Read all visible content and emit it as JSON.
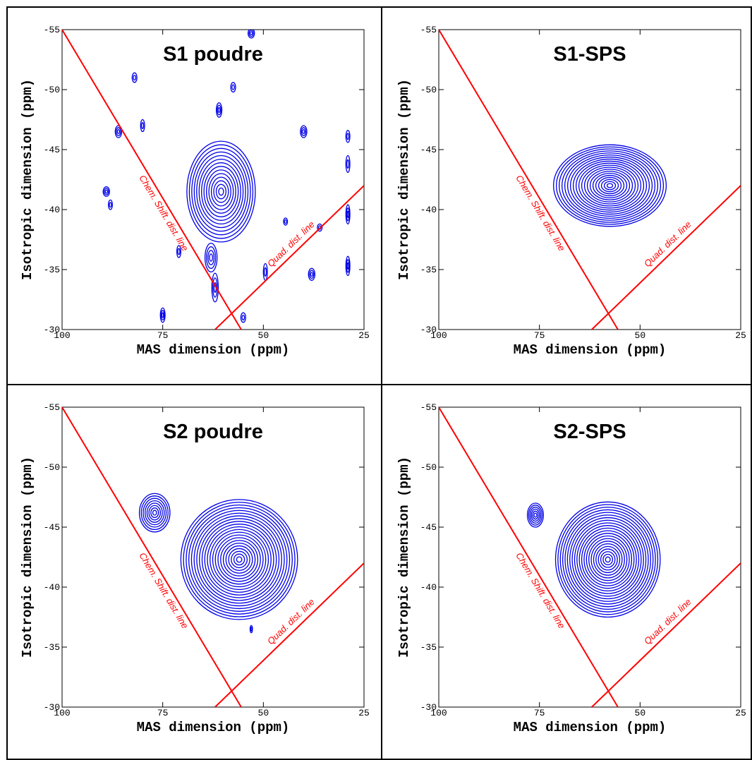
{
  "chart_data": [
    {
      "type": "contour",
      "title": "S1 poudre",
      "x_label": "MAS dimension (ppm)",
      "y_label": "Isotropic dimension (ppm)",
      "xlim": [
        100,
        25
      ],
      "ylim": [
        -30,
        -55
      ],
      "xticks": [
        100,
        75,
        50,
        25
      ],
      "yticks": [
        -30,
        -35,
        -40,
        -45,
        -50,
        -55
      ],
      "color": "#0000e6",
      "peaks": [
        {
          "x": 60.5,
          "y": -41.5,
          "rx": 8.5,
          "ry": 4.2,
          "levels": 14
        },
        {
          "x": 63,
          "y": -36,
          "rx": 1.5,
          "ry": 1.2,
          "levels": 4
        },
        {
          "x": 62,
          "y": -33.5,
          "rx": 0.8,
          "ry": 1.2,
          "levels": 3
        },
        {
          "x": 86,
          "y": -46.5,
          "rx": 0.8,
          "ry": 0.5,
          "levels": 3
        },
        {
          "x": 89,
          "y": -41.5,
          "rx": 0.8,
          "ry": 0.4,
          "levels": 3
        },
        {
          "x": 88,
          "y": -40.4,
          "rx": 0.5,
          "ry": 0.4,
          "levels": 2
        },
        {
          "x": 80,
          "y": -47,
          "rx": 0.5,
          "ry": 0.5,
          "levels": 2
        },
        {
          "x": 82,
          "y": -51,
          "rx": 0.6,
          "ry": 0.4,
          "levels": 2
        },
        {
          "x": 75,
          "y": -31.2,
          "rx": 0.6,
          "ry": 0.6,
          "levels": 3
        },
        {
          "x": 71,
          "y": -36.5,
          "rx": 0.5,
          "ry": 0.5,
          "levels": 2
        },
        {
          "x": 57.5,
          "y": -50.2,
          "rx": 0.6,
          "ry": 0.4,
          "levels": 2
        },
        {
          "x": 61,
          "y": -48.3,
          "rx": 0.7,
          "ry": 0.6,
          "levels": 3
        },
        {
          "x": 53,
          "y": -54.7,
          "rx": 0.8,
          "ry": 0.4,
          "levels": 3
        },
        {
          "x": 40,
          "y": -46.5,
          "rx": 0.8,
          "ry": 0.5,
          "levels": 3
        },
        {
          "x": 36,
          "y": -38.5,
          "rx": 0.6,
          "ry": 0.3,
          "levels": 2
        },
        {
          "x": 38,
          "y": -34.6,
          "rx": 0.8,
          "ry": 0.5,
          "levels": 3
        },
        {
          "x": 29,
          "y": -46.1,
          "rx": 0.5,
          "ry": 0.5,
          "levels": 2
        },
        {
          "x": 29,
          "y": -43.8,
          "rx": 0.5,
          "ry": 0.7,
          "levels": 2
        },
        {
          "x": 29,
          "y": -39.6,
          "rx": 0.5,
          "ry": 0.8,
          "levels": 3
        },
        {
          "x": 29,
          "y": -35.3,
          "rx": 0.5,
          "ry": 0.8,
          "levels": 3
        },
        {
          "x": 49.5,
          "y": -34.8,
          "rx": 0.5,
          "ry": 0.7,
          "levels": 2
        },
        {
          "x": 44.5,
          "y": -39,
          "rx": 0.5,
          "ry": 0.3,
          "levels": 2
        },
        {
          "x": 55,
          "y": -31,
          "rx": 0.6,
          "ry": 0.4,
          "levels": 2
        }
      ],
      "line_color": "#ff0000",
      "lines": [
        {
          "label": "Chem. Shift. dist. line",
          "x": [
            100,
            55.5
          ],
          "y": [
            -55,
            -30
          ]
        },
        {
          "label": "Quad. dist. line",
          "x": [
            62,
            25
          ],
          "y": [
            -30,
            -42
          ]
        }
      ]
    },
    {
      "type": "contour",
      "title": "S1-SPS",
      "x_label": "MAS dimension (ppm)",
      "y_label": "Isotropic dimension (ppm)",
      "xlim": [
        100,
        25
      ],
      "ylim": [
        -30,
        -55
      ],
      "xticks": [
        100,
        75,
        50,
        25
      ],
      "yticks": [
        -30,
        -35,
        -40,
        -45,
        -50,
        -55
      ],
      "color": "#0000e6",
      "peaks": [
        {
          "x": 57.5,
          "y": -42,
          "rx": 14,
          "ry": 3.4,
          "levels": 20
        }
      ],
      "line_color": "#ff0000",
      "lines": [
        {
          "label": "Chem. Shift. dist. line",
          "x": [
            100,
            55.5
          ],
          "y": [
            -55,
            -30
          ]
        },
        {
          "label": "Quad. dist. line",
          "x": [
            62,
            25
          ],
          "y": [
            -30,
            -42
          ]
        }
      ]
    },
    {
      "type": "contour",
      "title": "S2 poudre",
      "x_label": "MAS dimension (ppm)",
      "y_label": "Isotropic dimension (ppm)",
      "xlim": [
        100,
        25
      ],
      "ylim": [
        -30,
        -55
      ],
      "xticks": [
        100,
        75,
        50,
        25
      ],
      "yticks": [
        -30,
        -35,
        -40,
        -45,
        -50,
        -55
      ],
      "color": "#0000e6",
      "peaks": [
        {
          "x": 77,
          "y": -46.2,
          "rx": 3.8,
          "ry": 1.6,
          "levels": 8
        },
        {
          "x": 56,
          "y": -42.3,
          "rx": 14.5,
          "ry": 5,
          "levels": 22
        },
        {
          "x": 53,
          "y": -36.5,
          "rx": 0.3,
          "ry": 0.3,
          "levels": 2
        }
      ],
      "line_color": "#ff0000",
      "lines": [
        {
          "label": "Chem. Shift. dist. line",
          "x": [
            100,
            55.5
          ],
          "y": [
            -55,
            -30
          ]
        },
        {
          "label": "Quad. dist. line",
          "x": [
            62,
            25
          ],
          "y": [
            -30,
            -42
          ]
        }
      ]
    },
    {
      "type": "contour",
      "title": "S2-SPS",
      "x_label": "MAS dimension (ppm)",
      "y_label": "Isotropic dimension (ppm)",
      "xlim": [
        100,
        25
      ],
      "ylim": [
        -30,
        -55
      ],
      "xticks": [
        100,
        75,
        50,
        25
      ],
      "yticks": [
        -30,
        -35,
        -40,
        -45,
        -50,
        -55
      ],
      "color": "#0000e6",
      "peaks": [
        {
          "x": 76,
          "y": -46,
          "rx": 2,
          "ry": 1,
          "levels": 6
        },
        {
          "x": 58,
          "y": -42.3,
          "rx": 13,
          "ry": 4.8,
          "levels": 22
        }
      ],
      "line_color": "#ff0000",
      "lines": [
        {
          "label": "Chem. Shift. dist. line",
          "x": [
            100,
            55.5
          ],
          "y": [
            -55,
            -30
          ]
        },
        {
          "label": "Quad. dist. line",
          "x": [
            62,
            25
          ],
          "y": [
            -30,
            -42
          ]
        }
      ]
    }
  ]
}
